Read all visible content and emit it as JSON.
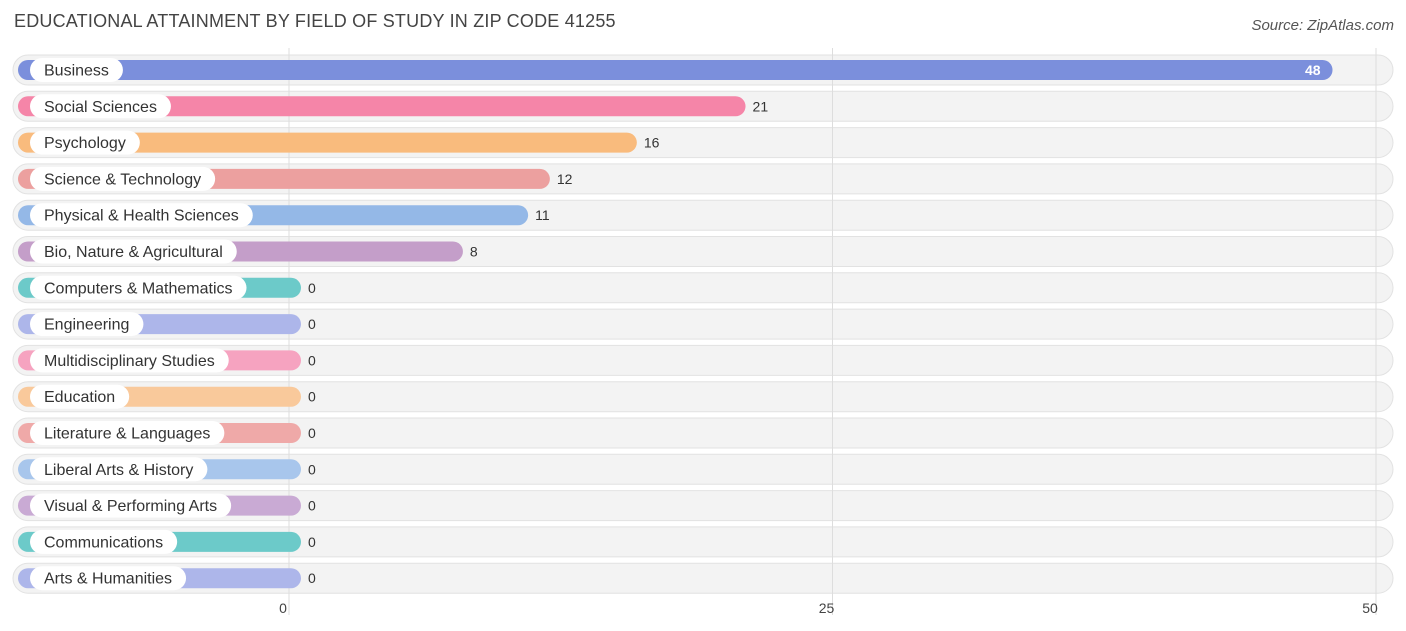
{
  "chart_data": {
    "type": "bar",
    "orientation": "horizontal",
    "title": "EDUCATIONAL ATTAINMENT BY FIELD OF STUDY IN ZIP CODE 41255",
    "source": "Source: ZipAtlas.com",
    "categories": [
      "Business",
      "Social Sciences",
      "Psychology",
      "Science & Technology",
      "Physical & Health Sciences",
      "Bio, Nature & Agricultural",
      "Computers & Mathematics",
      "Engineering",
      "Multidisciplinary Studies",
      "Education",
      "Literature & Languages",
      "Liberal Arts & History",
      "Visual & Performing Arts",
      "Communications",
      "Arts & Humanities"
    ],
    "values": [
      48,
      21,
      16,
      12,
      11,
      8,
      0,
      0,
      0,
      0,
      0,
      0,
      0,
      0,
      0
    ],
    "value_labels": [
      "48",
      "21",
      "16",
      "12",
      "11",
      "8",
      "0",
      "0",
      "0",
      "0",
      "0",
      "0",
      "0",
      "0",
      "0"
    ],
    "colors": [
      "#7b8fdc",
      "#f585a8",
      "#f9bb7d",
      "#eca09f",
      "#94b8e7",
      "#c49ec9",
      "#6ccac9",
      "#adb6ea",
      "#f6a3c0",
      "#f9c99b",
      "#efa9a8",
      "#a8c6ec",
      "#c9aad4",
      "#6ccac9",
      "#adb6ea"
    ],
    "xlim": [
      0,
      50
    ],
    "x_ticks": [
      0,
      25,
      50
    ],
    "x_tick_labels": [
      "0",
      "25",
      "50"
    ],
    "grid": true,
    "legend": "none"
  }
}
